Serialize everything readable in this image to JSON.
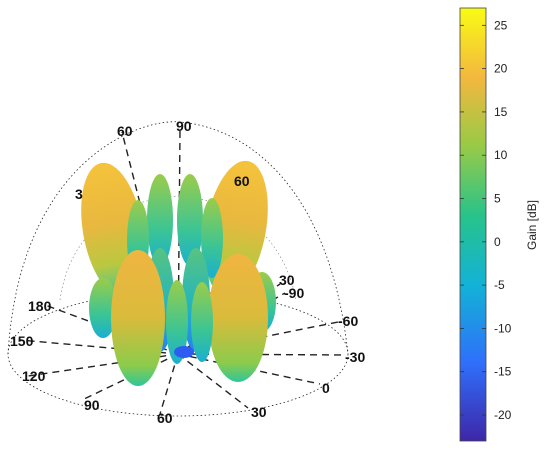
{
  "chart_data": {
    "type": "3d-radiation-pattern",
    "colorbar": {
      "label": "Gain [dB]",
      "range": [
        -23,
        27
      ],
      "ticks": [
        25,
        20,
        15,
        10,
        5,
        0,
        -5,
        -10,
        -15,
        -20
      ],
      "colormap": [
        "#3e26a8",
        "#2f6ffb",
        "#13b2d6",
        "#27c38b",
        "#97ca47",
        "#f3b83e",
        "#f9fb15"
      ]
    },
    "azimuth_labels": [
      "180",
      "150",
      "120",
      "90",
      "60",
      "30",
      "0",
      "-30",
      "-60",
      "-90"
    ],
    "elevation_labels_right": [
      "30",
      "60",
      "90"
    ],
    "elevation_labels_left": [
      "60",
      "3"
    ]
  }
}
